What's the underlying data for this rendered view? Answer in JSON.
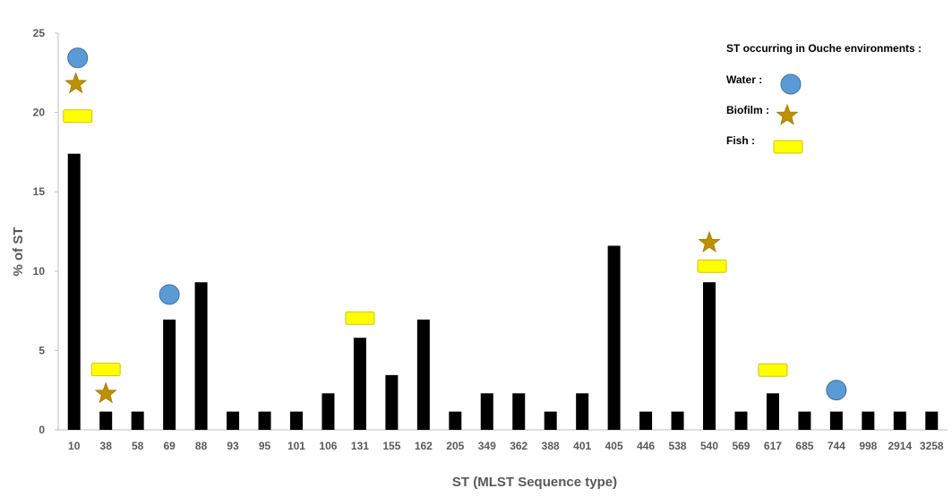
{
  "chart_data": {
    "type": "bar",
    "xlabel": "ST (MLST Sequence type)",
    "ylabel": "% of ST",
    "ylim": [
      0,
      25
    ],
    "yticks": [
      0,
      5,
      10,
      15,
      20,
      25
    ],
    "grid": false,
    "categories": [
      "10",
      "38",
      "58",
      "69",
      "88",
      "93",
      "95",
      "101",
      "106",
      "131",
      "155",
      "162",
      "205",
      "349",
      "362",
      "388",
      "401",
      "405",
      "446",
      "538",
      "540",
      "569",
      "617",
      "685",
      "744",
      "998",
      "2914",
      "3258"
    ],
    "values": [
      17.4,
      1.15,
      1.15,
      6.95,
      9.3,
      1.15,
      1.15,
      1.15,
      2.3,
      5.8,
      3.45,
      6.95,
      1.15,
      2.3,
      2.3,
      1.15,
      2.3,
      11.6,
      1.15,
      1.15,
      9.3,
      1.15,
      2.3,
      1.15,
      1.15,
      1.15,
      1.15,
      1.15
    ],
    "bar_color": "#000000",
    "markers": {
      "Water": [
        "10",
        "69",
        "744"
      ],
      "Biofilm": [
        "10",
        "38",
        "540"
      ],
      "Fish": [
        "10",
        "38",
        "131",
        "540",
        "617"
      ]
    },
    "legend": {
      "title": "ST occurring in Ouche environments :",
      "placement": "top-right",
      "items": [
        {
          "label": "Water :",
          "marker": "circle",
          "color": "#5b9bd5",
          "stroke": "#41719c"
        },
        {
          "label": "Biofilm :",
          "marker": "star",
          "color": "#bf9000",
          "stroke": "#a07800"
        },
        {
          "label": "Fish :",
          "marker": "rounded-rect",
          "color": "#ffff00",
          "stroke": "#d6c200"
        }
      ]
    }
  }
}
